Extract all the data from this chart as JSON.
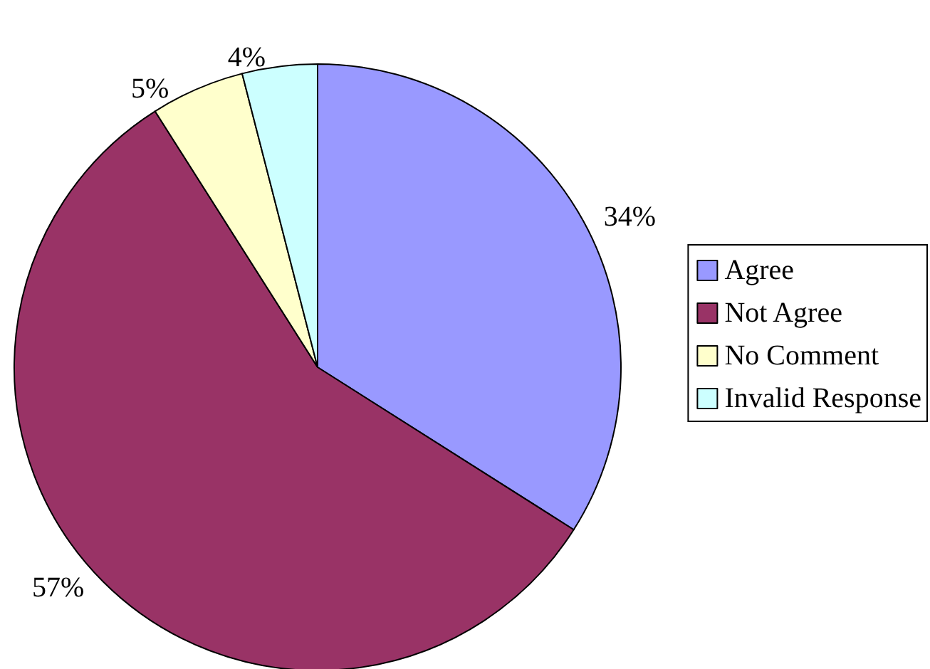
{
  "chart_data": {
    "type": "pie",
    "categories": [
      "Agree",
      "Not Agree",
      "No Comment",
      "Invalid Response"
    ],
    "values": [
      34,
      57,
      5,
      4
    ],
    "colors": [
      "#9999ff",
      "#993366",
      "#ffffcc",
      "#ccffff"
    ],
    "value_labels": [
      "34%",
      "57%",
      "5%",
      "4%"
    ],
    "legend": "right"
  }
}
